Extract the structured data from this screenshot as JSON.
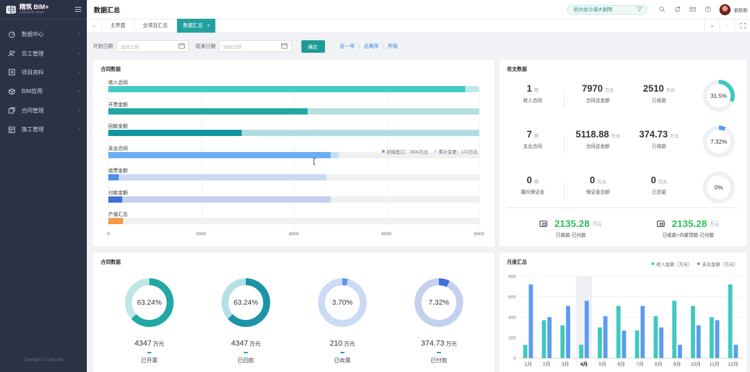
{
  "sidebar": {
    "brand": "精筑 BIM+",
    "brand_sub": "JINGZHU BIM+",
    "items": [
      {
        "label": "数据中心",
        "icon": "dashboard-icon"
      },
      {
        "label": "员工管理",
        "icon": "users-icon"
      },
      {
        "label": "项目资料",
        "icon": "document-icon"
      },
      {
        "label": "BIM应用",
        "icon": "cube-icon"
      },
      {
        "label": "合同管理",
        "icon": "copy-icon"
      },
      {
        "label": "施工管理",
        "icon": "building-icon"
      }
    ],
    "copyright": "Copyright © Liangzhu"
  },
  "topbar": {
    "title": "数据汇总",
    "project": "杭州金沙湖大剧院",
    "user": "鹅鹅鹅"
  },
  "tabs": [
    {
      "label": "主界面",
      "active": false
    },
    {
      "label": "全项目汇总",
      "active": false
    },
    {
      "label": "数据汇总",
      "active": true,
      "close": "×"
    }
  ],
  "filter": {
    "start_label": "开始日期",
    "start_placeholder": "选择日期",
    "end_label": "结束日期",
    "end_placeholder": "选择日期",
    "confirm": "确定",
    "quick": [
      "近一年",
      "近两年",
      "所有"
    ]
  },
  "colors": {
    "accent": "#23a1a1",
    "green": "#2ec05a",
    "blue": "#5b9cf0",
    "teal": "#3ec9c0"
  },
  "contract_bars": {
    "title": "合同数据",
    "chart_data": {
      "type": "bar",
      "orientation": "horizontal",
      "xlim": [
        0,
        8000
      ],
      "ticks": [
        "0",
        "2000",
        "4000",
        "6000",
        "8000"
      ],
      "rows": [
        {
          "label": "收入合同",
          "value": 7700,
          "total": 8000,
          "fg": "#43cbc5",
          "bg": "#bfe9e7"
        },
        {
          "label": "开票金额",
          "value": 4300,
          "total": 8000,
          "fg": "#22a7a4",
          "bg": "#b5e0df"
        },
        {
          "label": "回款金额",
          "value": 2880,
          "total": 8000,
          "fg": "#12959c",
          "bg": "#b2dee1"
        },
        {
          "label": "支出合同",
          "value": 4800,
          "total": 4970,
          "fg": "#6aaff2",
          "bg": "#c6def7"
        },
        {
          "label": "收票金额",
          "value": 230,
          "total": 4700,
          "fg": "#4f8fe6",
          "bg": "#cbd9f2"
        },
        {
          "label": "付款金额",
          "value": 300,
          "total": 4790,
          "fg": "#3f6fd6",
          "bg": "#c4d0ee"
        },
        {
          "label": "产值汇总",
          "value": 310,
          "total": 310,
          "fg": "#f59a45",
          "bg": "#f7c89a"
        }
      ]
    },
    "legend": [
      {
        "text": "初始签订：7800万元",
        "color": "#5b9cf0"
      },
      {
        "text": "累计变更：170万元",
        "color": "#c6def7"
      }
    ]
  },
  "finance": {
    "title": "收支数据",
    "rows": [
      {
        "count": "1",
        "count_unit": "项",
        "count_label": "收入合同",
        "amount": "7970",
        "amount_unit": "万元",
        "amount_label": "合同总金额",
        "paid": "2510",
        "paid_unit": "万元",
        "paid_label": "已收款",
        "pct": "31.5%",
        "pct_value": 31.5
      },
      {
        "count": "7",
        "count_unit": "项",
        "count_label": "支出合同",
        "amount": "5118.88",
        "amount_unit": "万元",
        "amount_label": "合同总金额",
        "paid": "374.73",
        "paid_unit": "万元",
        "paid_label": "已收款",
        "pct": "7.32%",
        "pct_value": 7.32
      },
      {
        "count": "0",
        "count_unit": "项",
        "count_label": "履约保证金",
        "amount": "0",
        "amount_unit": "万元",
        "amount_label": "保证金总额",
        "paid": "0",
        "paid_unit": "万元",
        "paid_label": "已还款",
        "pct": "0%",
        "pct_value": 0
      }
    ],
    "net": [
      {
        "value": "2135.28",
        "unit": "万元",
        "label": "已收款-已付款"
      },
      {
        "value": "2135.28",
        "unit": "万元",
        "label": "已收款+内部贷款-已付款"
      }
    ]
  },
  "donuts": {
    "title": "合同数据",
    "items": [
      {
        "pct": "63.24%",
        "pct_value": 63.24,
        "value": "4347",
        "unit": "万元",
        "label": "已开票",
        "fg": "#1fa8a4",
        "bg": "#bde6e5"
      },
      {
        "pct": "63.24%",
        "pct_value": 63.24,
        "value": "4347",
        "unit": "万元",
        "label": "已回款",
        "fg": "#1a95a7",
        "bg": "#b6dfe5"
      },
      {
        "pct": "3.70%",
        "pct_value": 3.7,
        "value": "210",
        "unit": "万元",
        "label": "已收票",
        "fg": "#5c95ea",
        "bg": "#cbdaf5"
      },
      {
        "pct": "7.32%",
        "pct_value": 7.32,
        "value": "374.73",
        "unit": "万元",
        "label": "已付款",
        "fg": "#3e72d8",
        "bg": "#c3d1ee"
      }
    ]
  },
  "monthly": {
    "title": "月度汇总",
    "chart_data": {
      "type": "bar",
      "categories": [
        "1月",
        "2月",
        "3月",
        "4月",
        "5月",
        "6月",
        "7月",
        "8月",
        "9月",
        "10月",
        "11月",
        "12月"
      ],
      "series": [
        {
          "name": "收入金额（万元）",
          "color": "#3ec9c0",
          "values": [
            130,
            370,
            320,
            130,
            300,
            510,
            270,
            410,
            560,
            510,
            400,
            720
          ]
        },
        {
          "name": "支出金额（万元）",
          "color": "#5b9cf0",
          "values": [
            720,
            400,
            510,
            560,
            410,
            270,
            510,
            300,
            130,
            320,
            370,
            130
          ]
        }
      ],
      "ylim": [
        0,
        800
      ],
      "yticks": [
        "0",
        "200",
        "400",
        "600",
        "800"
      ],
      "highlight_category": "4月"
    }
  }
}
